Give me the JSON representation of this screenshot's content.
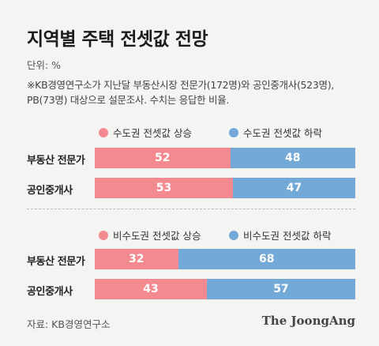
{
  "title": "지역별 주택 전셋값 전망",
  "unit": "단위: %",
  "note": "※KB경영연구소가 지난달 부동산시장 전문가(172명)와 공인중개사(523명), PB(73명) 대상으로 설문조사. 수치는 응답한 비율.",
  "source": "자료: KB경영연구소",
  "brand": "The JoongAng",
  "colors": {
    "rise": "#f28a90",
    "fall": "#73a9d6"
  },
  "chart_data": [
    {
      "type": "bar",
      "stacked": true,
      "orientation": "horizontal",
      "categories": [
        "부동산 전문가",
        "공인중개사"
      ],
      "series": [
        {
          "name": "수도권 전셋값 상승",
          "values": [
            52,
            53
          ]
        },
        {
          "name": "수도권 전셋값 하락",
          "values": [
            48,
            47
          ]
        }
      ],
      "xlim": [
        0,
        100
      ]
    },
    {
      "type": "bar",
      "stacked": true,
      "orientation": "horizontal",
      "categories": [
        "부동산 전문가",
        "공인중개사"
      ],
      "series": [
        {
          "name": "비수도권 전셋값 상승",
          "values": [
            32,
            43
          ]
        },
        {
          "name": "비수도권 전셋값 하락",
          "values": [
            68,
            57
          ]
        }
      ],
      "xlim": [
        0,
        100
      ]
    }
  ]
}
